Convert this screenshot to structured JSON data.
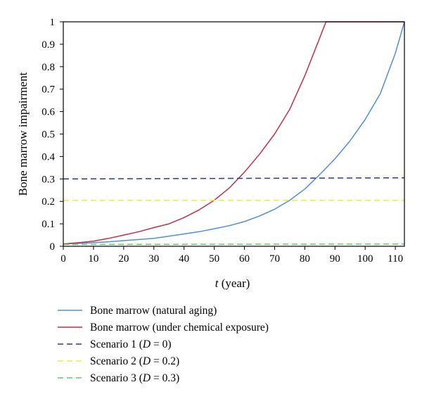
{
  "chart_data": {
    "type": "line",
    "title": "",
    "xlabel_var": "t",
    "xlabel_unit": " (year)",
    "ylabel": "Bone marrow impairment",
    "xlim": [
      0,
      113
    ],
    "ylim": [
      0,
      1
    ],
    "xticks": [
      0,
      10,
      20,
      30,
      40,
      50,
      60,
      70,
      80,
      90,
      100,
      110
    ],
    "yticks": [
      0,
      0.1,
      0.2,
      0.3,
      0.4,
      0.5,
      0.6,
      0.7,
      0.8,
      0.9,
      1
    ],
    "ytick_labels": [
      "0",
      "0.1",
      "0.2",
      "0.3",
      "0.4",
      "0.5",
      "0.6",
      "0.7",
      "0.8",
      "0.9",
      "1"
    ],
    "grid": false,
    "legend_position": "below",
    "series": [
      {
        "name": "Bone marrow (natural aging)",
        "legend_parts": [
          {
            "text": "Bone marrow (natural aging)",
            "italic": false
          }
        ],
        "color": "#4f8fd8",
        "dash": "solid",
        "x": [
          0,
          5,
          10,
          15,
          20,
          25,
          30,
          35,
          40,
          45,
          50,
          55,
          60,
          65,
          70,
          75,
          80,
          85,
          90,
          95,
          100,
          105,
          110,
          113
        ],
        "y": [
          0.01,
          0.013,
          0.016,
          0.02,
          0.025,
          0.03,
          0.035,
          0.045,
          0.055,
          0.065,
          0.078,
          0.092,
          0.11,
          0.135,
          0.165,
          0.205,
          0.255,
          0.32,
          0.39,
          0.47,
          0.565,
          0.68,
          0.86,
          1.0
        ]
      },
      {
        "name": "Bone marrow (under chemical exposure)",
        "legend_parts": [
          {
            "text": "Bone marrow (under chemical exposure)",
            "italic": false
          }
        ],
        "color": "#c42f44",
        "dash": "solid",
        "x": [
          0,
          5,
          10,
          15,
          20,
          25,
          30,
          35,
          40,
          45,
          50,
          55,
          60,
          65,
          70,
          75,
          80,
          85,
          87,
          90,
          100,
          113
        ],
        "y": [
          0.01,
          0.016,
          0.023,
          0.035,
          0.05,
          0.065,
          0.083,
          0.1,
          0.128,
          0.162,
          0.205,
          0.26,
          0.33,
          0.41,
          0.5,
          0.61,
          0.76,
          0.93,
          1.0,
          1.0,
          1.0,
          1.0
        ]
      },
      {
        "name": "Scenario 1 (D = 0)",
        "legend_parts": [
          {
            "text": "Scenario 1 (",
            "italic": false
          },
          {
            "text": "D",
            "italic": true
          },
          {
            "text": " = 0)",
            "italic": false
          }
        ],
        "color": "#233f8f",
        "dash": "dashed",
        "x": [
          0,
          113
        ],
        "y": [
          0.3,
          0.305
        ]
      },
      {
        "name": "Scenario 2 (D = 0.2)",
        "legend_parts": [
          {
            "text": "Scenario 2 (",
            "italic": false
          },
          {
            "text": "D",
            "italic": true
          },
          {
            "text": " = 0.2)",
            "italic": false
          }
        ],
        "color": "#efe84a",
        "dash": "dashed",
        "x": [
          0,
          113
        ],
        "y": [
          0.205,
          0.205
        ]
      },
      {
        "name": "Scenario 3 (D = 0.3)",
        "legend_parts": [
          {
            "text": "Scenario 3 (",
            "italic": false
          },
          {
            "text": "D",
            "italic": true
          },
          {
            "text": " = 0.3)",
            "italic": false
          }
        ],
        "color": "#5fd15a",
        "dash": "dashed",
        "x": [
          0,
          113
        ],
        "y": [
          0.008,
          0.01
        ]
      }
    ]
  }
}
